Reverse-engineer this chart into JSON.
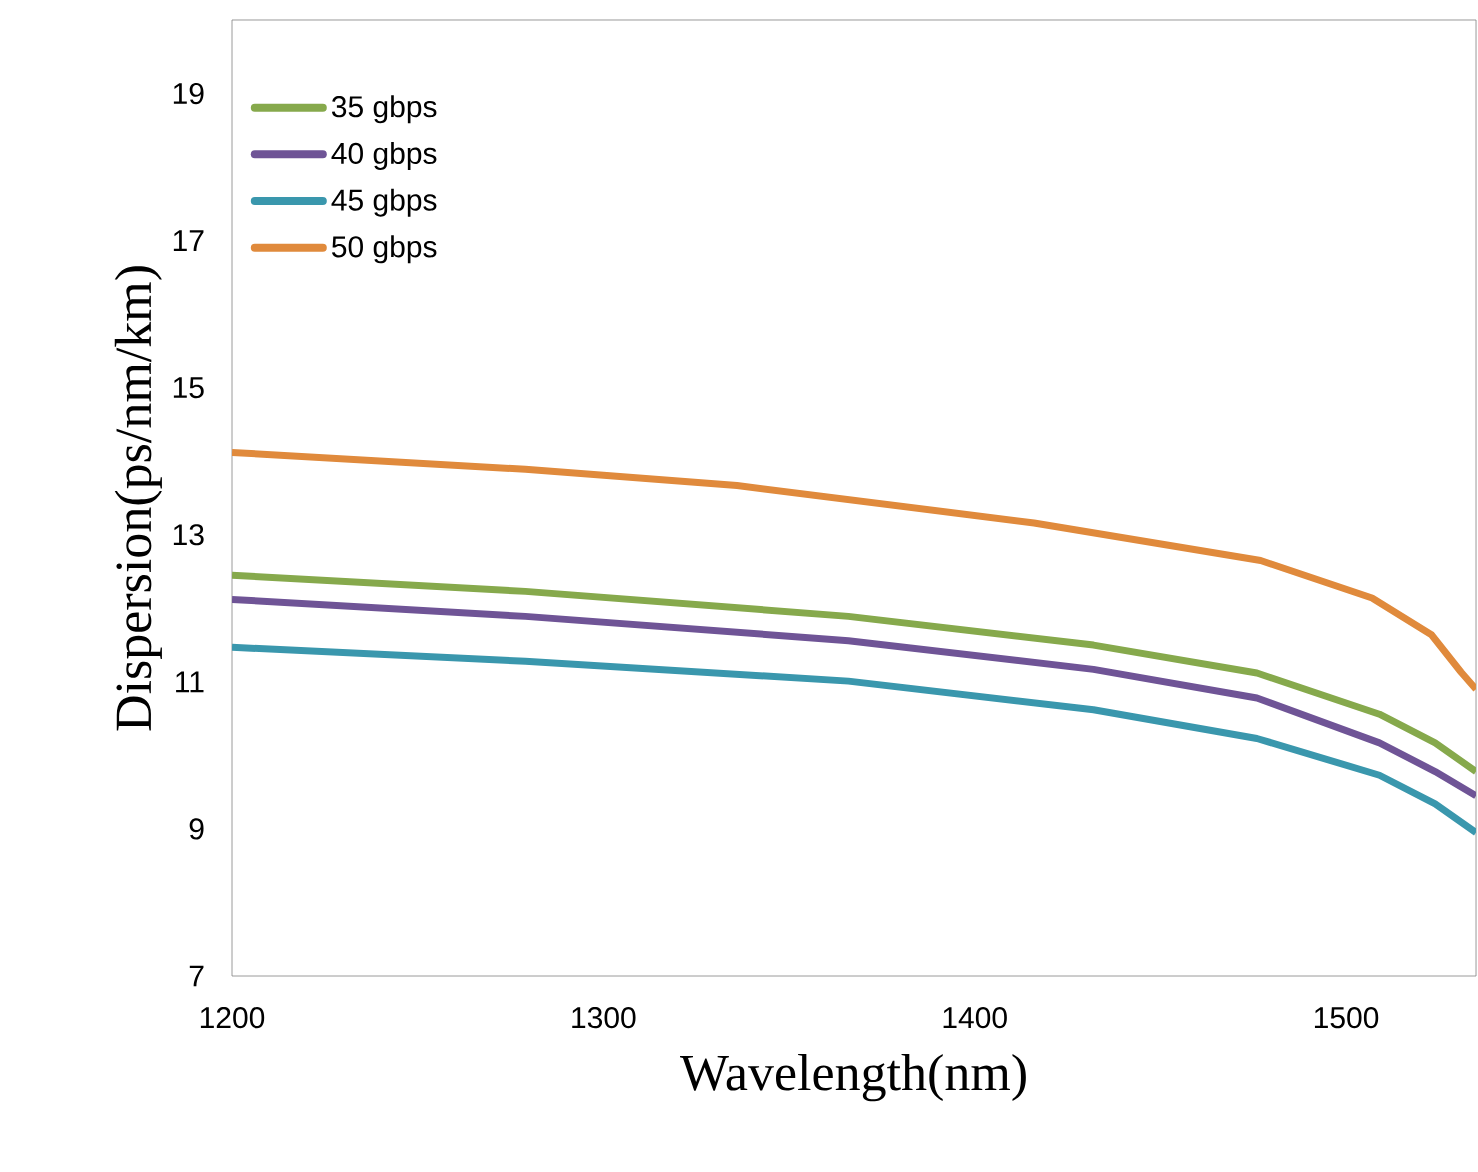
{
  "chart_data": {
    "type": "line",
    "xlabel": "Wavelength(nm)",
    "ylabel": "Dispersion(ps/nm/km)",
    "xlim": [
      1200,
      1535
    ],
    "xticks": [
      1200,
      1300,
      1400,
      1500
    ],
    "ylim": [
      7,
      20
    ],
    "yticks": [
      7,
      9,
      11,
      13,
      15,
      17,
      19
    ],
    "legend": "top left",
    "grid": false,
    "marker": "none",
    "line_style": "solid",
    "series": [
      {
        "name": "35 gbps",
        "color": "#86a94c",
        "x": [
          1200,
          1279,
          1366,
          1432,
          1476,
          1509,
          1524,
          1535
        ],
        "values": [
          12.45,
          12.23,
          11.89,
          11.5,
          11.12,
          10.56,
          10.17,
          9.78
        ]
      },
      {
        "name": "40 gbps",
        "color": "#6f5496",
        "x": [
          1200,
          1279,
          1366,
          1432,
          1476,
          1509,
          1524,
          1535
        ],
        "values": [
          12.12,
          11.89,
          11.56,
          11.17,
          10.78,
          10.17,
          9.78,
          9.45
        ]
      },
      {
        "name": "45 gbps",
        "color": "#3a97ad",
        "x": [
          1200,
          1279,
          1366,
          1432,
          1476,
          1509,
          1524,
          1535
        ],
        "values": [
          11.47,
          11.28,
          11.01,
          10.62,
          10.23,
          9.73,
          9.34,
          8.95
        ]
      },
      {
        "name": "50 gbps",
        "color": "#e08a3c",
        "x": [
          1200,
          1279,
          1336,
          1416,
          1477,
          1507,
          1523,
          1531,
          1535
        ],
        "values": [
          14.12,
          13.89,
          13.67,
          13.16,
          12.65,
          12.14,
          11.64,
          11.13,
          10.9
        ]
      }
    ]
  }
}
